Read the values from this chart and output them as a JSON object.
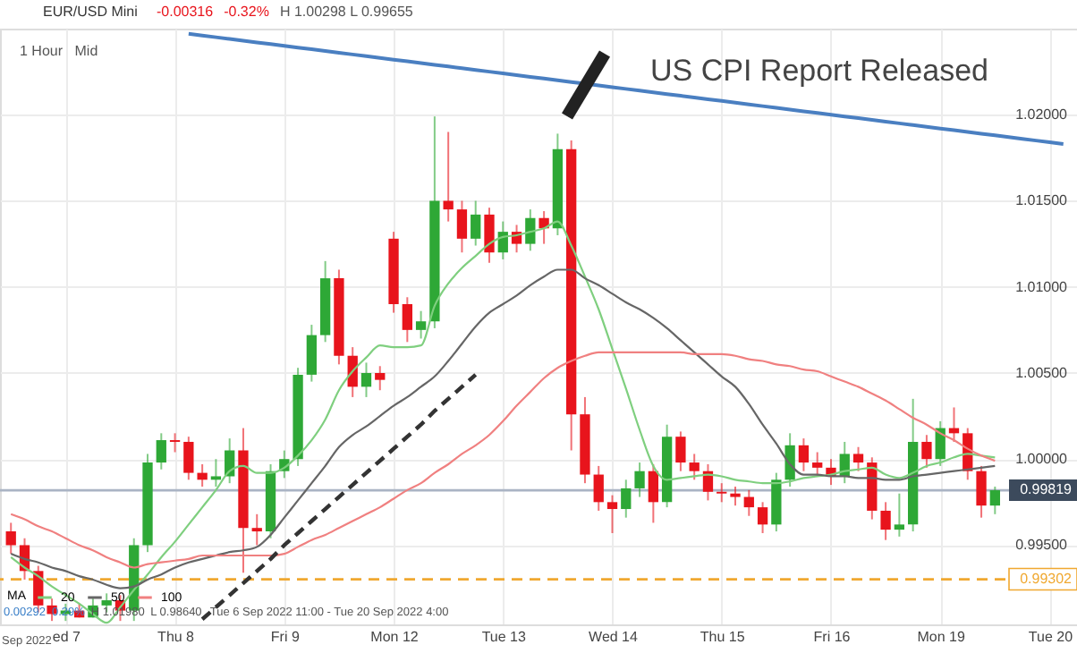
{
  "chart_data": {
    "type": "candlestick",
    "title": "EUR/USD Mini",
    "annotations": [
      "-0.00316",
      "-0.32%",
      "H 1.00298 L 0.99655",
      "1 Hour",
      "Mid",
      "0.00292",
      "0.29%",
      "H 1.01980",
      "L 0.98640",
      "Tue 6 Sep 2022 11:00 - Tue 20 Sep 2022 4:00",
      "Sep 2022",
      "US CPI Report Released"
    ],
    "categories": [
      null,
      null,
      null,
      null,
      "ed 7",
      null,
      null,
      null,
      null,
      null,
      null,
      null,
      "Thu 8",
      null,
      null,
      null,
      null,
      null,
      null,
      null,
      "Fri 9",
      null,
      null,
      null,
      null,
      null,
      null,
      null,
      "Mon 12",
      null,
      null,
      null,
      null,
      null,
      null,
      null,
      "Tue 13",
      null,
      null,
      null,
      null,
      null,
      null,
      null,
      "Wed 14",
      null,
      null,
      null,
      null,
      null,
      null,
      null,
      "Thu 15",
      null,
      null,
      null,
      null,
      null,
      null,
      null,
      "Fri 16",
      null,
      null,
      null,
      null,
      null,
      null,
      null,
      "Mon 19",
      null,
      null,
      null,
      null,
      null,
      null,
      null,
      "Tue 20",
      null
    ],
    "ohlc": [
      [
        0.9958,
        0.9963,
        0.9945,
        0.995
      ],
      [
        0.995,
        0.9954,
        0.993,
        0.9935
      ],
      [
        0.9935,
        0.9938,
        0.9911,
        0.9915
      ],
      [
        0.9915,
        0.9919,
        0.9906,
        0.991
      ],
      [
        0.991,
        0.9916,
        0.9906,
        0.9912
      ],
      [
        0.9912,
        0.9916,
        0.9908,
        0.9908
      ],
      [
        0.9908,
        0.9919,
        0.9908,
        0.9915
      ],
      [
        0.9915,
        0.9922,
        0.9911,
        0.9918
      ],
      [
        0.9918,
        0.9921,
        0.9906,
        0.9912
      ],
      [
        0.9912,
        0.9954,
        0.9906,
        0.995
      ],
      [
        0.995,
        1.0003,
        0.9946,
        0.9998
      ],
      [
        0.9998,
        1.0015,
        0.9994,
        1.0011
      ],
      [
        1.0011,
        1.0015,
        1.0004,
        1.001
      ],
      [
        1.001,
        1.0013,
        0.9988,
        0.9992
      ],
      [
        0.9992,
        0.9997,
        0.9984,
        0.9988
      ],
      [
        0.9988,
        1.0,
        0.9984,
        0.999
      ],
      [
        0.999,
        1.0012,
        0.9986,
        1.0005
      ],
      [
        1.0005,
        1.0018,
        0.9934,
        0.996
      ],
      [
        0.996,
        0.9968,
        0.995,
        0.9958
      ],
      [
        0.9958,
        0.9997,
        0.9954,
        0.9993
      ],
      [
        0.9993,
        1.0005,
        0.9989,
        1.0
      ],
      [
        1.0,
        1.0053,
        0.9996,
        1.0049
      ],
      [
        1.0049,
        1.0078,
        1.0045,
        1.0072
      ],
      [
        1.0072,
        1.0115,
        1.0068,
        1.0105
      ],
      [
        1.0105,
        1.011,
        1.0055,
        1.006
      ],
      [
        1.006,
        1.0065,
        1.0036,
        1.0042
      ],
      [
        1.0042,
        1.0056,
        1.0036,
        1.005
      ],
      [
        1.005,
        1.0054,
        1.004,
        1.0046
      ],
      [
        1.0128,
        1.0132,
        1.0085,
        1.009
      ],
      [
        1.009,
        1.0094,
        1.0068,
        1.0075
      ],
      [
        1.0075,
        1.0086,
        1.007,
        1.008
      ],
      [
        1.008,
        1.0199,
        1.0076,
        1.015
      ],
      [
        1.015,
        1.019,
        1.0138,
        1.0145
      ],
      [
        1.0145,
        1.015,
        1.012,
        1.0128
      ],
      [
        1.0128,
        1.015,
        1.0124,
        1.0142
      ],
      [
        1.0142,
        1.0146,
        1.0114,
        1.012
      ],
      [
        1.012,
        1.0138,
        1.0116,
        1.0132
      ],
      [
        1.0132,
        1.0136,
        1.012,
        1.0125
      ],
      [
        1.0125,
        1.0145,
        1.0121,
        1.014
      ],
      [
        1.014,
        1.0144,
        1.0125,
        1.0134
      ],
      [
        1.0134,
        1.0189,
        1.013,
        1.018
      ],
      [
        1.018,
        1.0185,
        1.0005,
        1.0026
      ],
      [
        1.0026,
        1.0036,
        0.9986,
        0.9991
      ],
      [
        0.9991,
        0.9996,
        0.997,
        0.9975
      ],
      [
        0.9975,
        0.9979,
        0.9957,
        0.9971
      ],
      [
        0.9971,
        0.9988,
        0.9966,
        0.9983
      ],
      [
        0.9983,
        0.9998,
        0.9978,
        0.9993
      ],
      [
        0.9993,
        0.9997,
        0.9963,
        0.9975
      ],
      [
        0.9975,
        1.002,
        0.9972,
        1.0013
      ],
      [
        1.0013,
        1.0016,
        0.9993,
        0.9998
      ],
      [
        0.9998,
        1.0003,
        0.9988,
        0.9993
      ],
      [
        0.9993,
        0.9997,
        0.9976,
        0.9981
      ],
      [
        0.9981,
        0.9986,
        0.9975,
        0.998
      ],
      [
        0.998,
        0.9984,
        0.9973,
        0.9978
      ],
      [
        0.9978,
        0.9982,
        0.9967,
        0.9972
      ],
      [
        0.9972,
        0.9975,
        0.9957,
        0.9962
      ],
      [
        0.9962,
        0.9992,
        0.9958,
        0.9988
      ],
      [
        0.9988,
        1.0015,
        0.9984,
        1.0008
      ],
      [
        1.0008,
        1.0012,
        0.9993,
        0.9998
      ],
      [
        0.9998,
        1.0004,
        0.999,
        0.9995
      ],
      [
        0.9995,
        1.0,
        0.9985,
        0.999
      ],
      [
        0.999,
        1.001,
        0.9986,
        1.0003
      ],
      [
        1.0003,
        1.0007,
        0.9993,
        0.9998
      ],
      [
        0.9998,
        1.0001,
        0.9965,
        0.997
      ],
      [
        0.997,
        0.9975,
        0.9953,
        0.9959
      ],
      [
        0.9959,
        0.998,
        0.9955,
        0.9962
      ],
      [
        0.9962,
        1.0035,
        0.9958,
        1.001
      ],
      [
        1.001,
        1.0014,
        0.9995,
        1.0
      ],
      [
        1.0,
        1.0022,
        0.9996,
        1.0018
      ],
      [
        1.0018,
        1.003,
        1.001,
        1.0015
      ],
      [
        1.0015,
        1.0018,
        0.9988,
        0.9993
      ],
      [
        0.9993,
        0.9996,
        0.9966,
        0.9973
      ],
      [
        0.9973,
        0.9984,
        0.9968,
        0.99819
      ],
      null,
      null,
      null,
      null,
      null
    ],
    "series": [
      {
        "name": "20",
        "type": "line",
        "color": "#7fcf7f",
        "values": [
          0.9943,
          0.9937,
          0.9932,
          0.9926,
          0.9921,
          0.9916,
          0.991,
          0.9905,
          0.9914,
          0.9924,
          0.9933,
          0.9943,
          0.9952,
          0.9962,
          0.9972,
          0.9982,
          0.9993,
          0.9996,
          0.9992,
          0.9992,
          0.9995,
          1.0002,
          1.0011,
          1.0023,
          1.004,
          1.0051,
          1.0059,
          1.0066,
          1.0065,
          1.0065,
          1.0066,
          1.0089,
          1.0102,
          1.0111,
          1.0118,
          1.0125,
          1.0129,
          1.013,
          1.0132,
          1.0134,
          1.0138,
          1.0124,
          1.0106,
          1.0087,
          1.0064,
          1.0041,
          1.0017,
          0.9996,
          0.9988,
          0.9989,
          0.999,
          0.9991,
          0.999,
          0.9988,
          0.9987,
          0.9986,
          0.9986,
          0.9987,
          0.9989,
          0.999,
          0.9991,
          0.9993,
          0.9994,
          0.9995,
          0.9991,
          0.9989,
          0.9992,
          0.9996,
          0.9998,
          1.0001,
          1.0003,
          1.0002,
          1.0001,
          null,
          null,
          null,
          null,
          null
        ]
      },
      {
        "name": "50",
        "type": "line",
        "color": "#666666",
        "values": [
          0.9945,
          0.9942,
          0.994,
          0.9937,
          0.9935,
          0.9932,
          0.993,
          0.9927,
          0.9925,
          0.9926,
          0.993,
          0.9933,
          0.9937,
          0.994,
          0.9942,
          0.9944,
          0.9946,
          0.9947,
          0.9949,
          0.9956,
          0.9966,
          0.9976,
          0.9986,
          0.9996,
          1.0007,
          1.0014,
          1.0019,
          1.0025,
          1.0031,
          1.0036,
          1.0042,
          1.0048,
          1.0057,
          1.0067,
          1.0077,
          1.0085,
          1.009,
          1.0095,
          1.0101,
          1.0106,
          1.011,
          1.011,
          1.0105,
          1.0101,
          1.0096,
          1.0091,
          1.0087,
          1.0082,
          1.0076,
          1.0069,
          1.0062,
          1.0055,
          1.0048,
          1.0042,
          1.0032,
          1.002,
          1.0009,
          0.9997,
          0.9991,
          0.9991,
          0.999,
          0.999,
          0.9989,
          0.9989,
          0.9988,
          0.9988,
          0.999,
          0.9991,
          0.9992,
          0.9993,
          0.9994,
          0.9995,
          0.9996,
          null,
          null,
          null,
          null,
          null
        ]
      },
      {
        "name": "100",
        "type": "line",
        "color": "#f08080",
        "values": [
          0.9968,
          0.9965,
          0.9961,
          0.9958,
          0.9954,
          0.995,
          0.9947,
          0.9943,
          0.994,
          0.9937,
          0.9939,
          0.994,
          0.9941,
          0.9942,
          0.9944,
          0.9944,
          0.9944,
          0.9944,
          0.9944,
          0.9944,
          0.9945,
          0.9949,
          0.9953,
          0.9956,
          0.996,
          0.9964,
          0.9968,
          0.9972,
          0.9977,
          0.9982,
          0.9986,
          0.9992,
          0.9997,
          1.0003,
          1.0008,
          1.0014,
          1.0022,
          1.0031,
          1.0039,
          1.0047,
          1.0053,
          1.0057,
          1.006,
          1.0062,
          1.0062,
          1.0062,
          1.0062,
          1.0062,
          1.0062,
          1.0062,
          1.0061,
          1.0061,
          1.0061,
          1.006,
          1.0058,
          1.0057,
          1.0055,
          1.0054,
          1.0052,
          1.0051,
          1.0048,
          1.0045,
          1.0042,
          1.0038,
          1.0034,
          1.0029,
          1.0024,
          1.002,
          1.0015,
          1.0011,
          1.0006,
          1.0002,
          0.9999,
          null,
          null,
          null,
          null,
          null
        ]
      },
      {
        "type": "line",
        "color": "#4a7fc1",
        "values": [
          null,
          null,
          null,
          null,
          null,
          null,
          null,
          null,
          null,
          null,
          null,
          null,
          null,
          1.0247,
          1.0246,
          1.0245,
          1.0244,
          1.0243,
          1.0242,
          1.0241,
          1.024,
          1.0239,
          1.0238,
          1.0237,
          1.0236,
          1.0235,
          1.0234,
          1.0233,
          1.0232,
          1.0231,
          1.023,
          1.0229,
          1.0228,
          1.0227,
          1.0226,
          1.0225,
          1.0224,
          1.0223,
          1.0222,
          1.0221,
          1.022,
          1.0219,
          1.0218,
          1.0217,
          1.0216,
          1.0215,
          1.0214,
          1.0213,
          1.0212,
          1.0211,
          1.021,
          1.0209,
          1.0208,
          1.0207,
          1.0206,
          1.0205,
          1.0204,
          1.0203,
          1.0202,
          1.0201,
          1.02,
          1.0199,
          1.0198,
          1.0197,
          1.0196,
          1.0195,
          1.0194,
          1.0193,
          1.0192,
          1.0191,
          1.019,
          1.0189,
          1.0188,
          1.0187,
          1.0186,
          1.0185,
          1.0184,
          1.0183
        ]
      },
      {
        "type": "line",
        "color": "#333333",
        "line_style": "dashed",
        "values": [
          null,
          null,
          null,
          null,
          null,
          null,
          null,
          null,
          null,
          null,
          null,
          null,
          null,
          null,
          0.9907,
          0.9914,
          0.9921,
          0.9928,
          0.9935,
          0.9942,
          0.995,
          0.9957,
          0.9964,
          0.9971,
          0.9978,
          0.9985,
          0.9992,
          0.9999,
          1.0006,
          1.0013,
          1.002,
          1.0028,
          1.0035,
          1.0042,
          1.0049,
          null,
          null,
          null,
          null,
          null,
          null,
          null,
          null,
          null,
          null,
          null,
          null,
          null,
          null,
          null,
          null,
          null,
          null,
          null,
          null,
          null,
          null,
          null,
          null,
          null,
          null,
          null,
          null,
          null,
          null,
          null,
          null,
          null,
          null,
          null,
          null,
          null,
          null,
          null,
          null,
          null,
          null,
          null
        ]
      }
    ],
    "ref_lines": [
      {
        "axis": "y",
        "value": 0.99302,
        "label": "0.99302",
        "color": "#f0a830",
        "line_style": "dashed"
      },
      {
        "axis": "y",
        "value": 0.99819,
        "label": "0.99819",
        "color": "#aab4c4",
        "line_style": "solid"
      }
    ],
    "ylim": [
      0.9904,
      1.025
    ],
    "yticks": [
      {
        "value": 0.995,
        "label": "0.99500"
      },
      {
        "value": 1.0,
        "label": "1.00000"
      },
      {
        "value": 1.005,
        "label": "1.00500"
      },
      {
        "value": 1.01,
        "label": "1.01000"
      },
      {
        "value": 1.015,
        "label": "1.01500"
      },
      {
        "value": 1.02,
        "label": "1.02000"
      }
    ],
    "grid": true,
    "legend": "bottom left",
    "legend_title": "MA"
  }
}
